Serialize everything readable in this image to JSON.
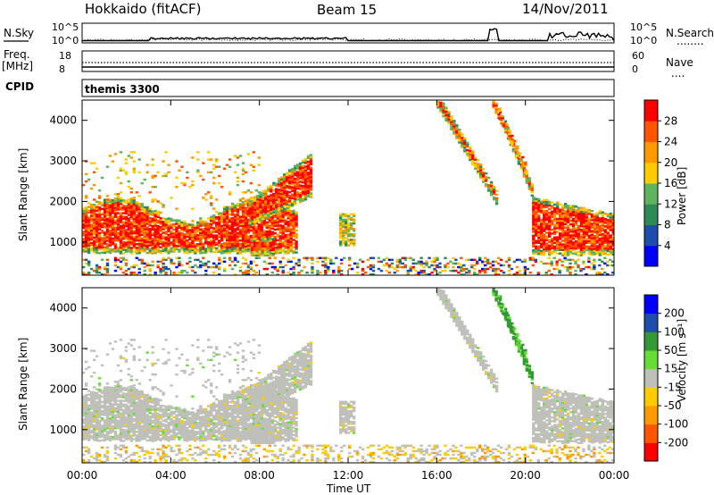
{
  "header": {
    "station": "Hokkaido (fitACF)",
    "beam": "Beam 15",
    "date": "14/Nov/2011"
  },
  "nsky_panel": {
    "left_label": "N.Sky",
    "right_label": "N.Search",
    "right_legend": "........",
    "yticks": [
      "10^5",
      "10^0"
    ]
  },
  "freq_panel": {
    "left_label_1": "Freq.",
    "left_label_2": "[MHz]",
    "left_ticks": [
      "18",
      "8"
    ],
    "right_label": "Nave",
    "right_legend": "....",
    "right_ticks": [
      "60",
      "0"
    ]
  },
  "cpid_panel": {
    "label": "CPID",
    "program": "themis 3300"
  },
  "colors": {
    "power": [
      "#0000ff",
      "#1f4fae",
      "#2e8b57",
      "#5fb35f",
      "#ffcc00",
      "#ff9900",
      "#ff5500",
      "#ff0000"
    ],
    "velocity": [
      "#ff0000",
      "#ff5500",
      "#ff9900",
      "#ffcc00",
      "#c0c0bb",
      "#66dd33",
      "#339933",
      "#1f4fae",
      "#0000ff"
    ]
  },
  "chart_data": [
    {
      "type": "heatmap",
      "name": "power",
      "ylabel": "Slant Range [km]",
      "xlim": [
        "00:00",
        "24:00"
      ],
      "ylim": [
        180,
        4500
      ],
      "yticks": [
        1000,
        2000,
        3000,
        4000
      ],
      "colorbar": {
        "title": "Power [dB]",
        "labels": [
          "4",
          "8",
          "12",
          "16",
          "20",
          "24",
          "28"
        ],
        "range": [
          0,
          32
        ]
      },
      "regions": [
        {
          "t_start": 0.0,
          "t_end": 9.6,
          "range_min": 700,
          "range_max": 2200,
          "value": "26-32 dB"
        },
        {
          "t_start": 7.5,
          "t_end": 10.3,
          "range_min": 1500,
          "range_max": 3200,
          "value": "24-32 dB"
        },
        {
          "t_start": 11.6,
          "t_end": 12.3,
          "range_min": 900,
          "range_max": 1700,
          "value": "8-28 dB"
        },
        {
          "t_start": 16.0,
          "t_end": 18.7,
          "range_min": 1700,
          "range_max": 4300,
          "value": "20-32 dB"
        },
        {
          "t_start": 18.8,
          "t_end": 20.3,
          "range_min": 1500,
          "range_max": 4000,
          "value": "16-32 dB"
        },
        {
          "t_start": 20.3,
          "t_end": 24.0,
          "range_min": 600,
          "range_max": 2100,
          "value": "20-32 dB"
        },
        {
          "t_start": 0.0,
          "t_end": 24.0,
          "range_min": 180,
          "range_max": 600,
          "value": "4-28 dB"
        }
      ]
    },
    {
      "type": "heatmap",
      "name": "velocity",
      "ylabel": "Slant Range [km]",
      "xlabel": "Time UT",
      "xticks": [
        "00:00",
        "04:00",
        "08:00",
        "12:00",
        "16:00",
        "20:00",
        "00:00"
      ],
      "ylim": [
        180,
        4500
      ],
      "yticks": [
        1000,
        2000,
        3000,
        4000
      ],
      "colorbar": {
        "title": "Velocity [m s⁻¹]",
        "labels": [
          "200",
          "100",
          "50",
          "15",
          "-15",
          "-50",
          "-100",
          "-200"
        ],
        "range": [
          -250,
          250
        ]
      },
      "regions": [
        {
          "t_start": 0.0,
          "t_end": 10.3,
          "range_min": 700,
          "range_max": 3200,
          "value": "-15 to 15 m/s"
        },
        {
          "t_start": 16.0,
          "t_end": 18.7,
          "range_min": 2500,
          "range_max": 4300,
          "value": "-15 to 15 m/s"
        },
        {
          "t_start": 18.5,
          "t_end": 20.5,
          "range_min": 1900,
          "range_max": 4400,
          "value": "15 to 100 m/s"
        },
        {
          "t_start": 20.3,
          "t_end": 24.0,
          "range_min": 600,
          "range_max": 2200,
          "value": "-15 to 15 m/s"
        },
        {
          "t_start": 0.0,
          "t_end": 24.0,
          "range_min": 180,
          "range_max": 600,
          "value": "-50 to 15 m/s"
        }
      ]
    }
  ]
}
